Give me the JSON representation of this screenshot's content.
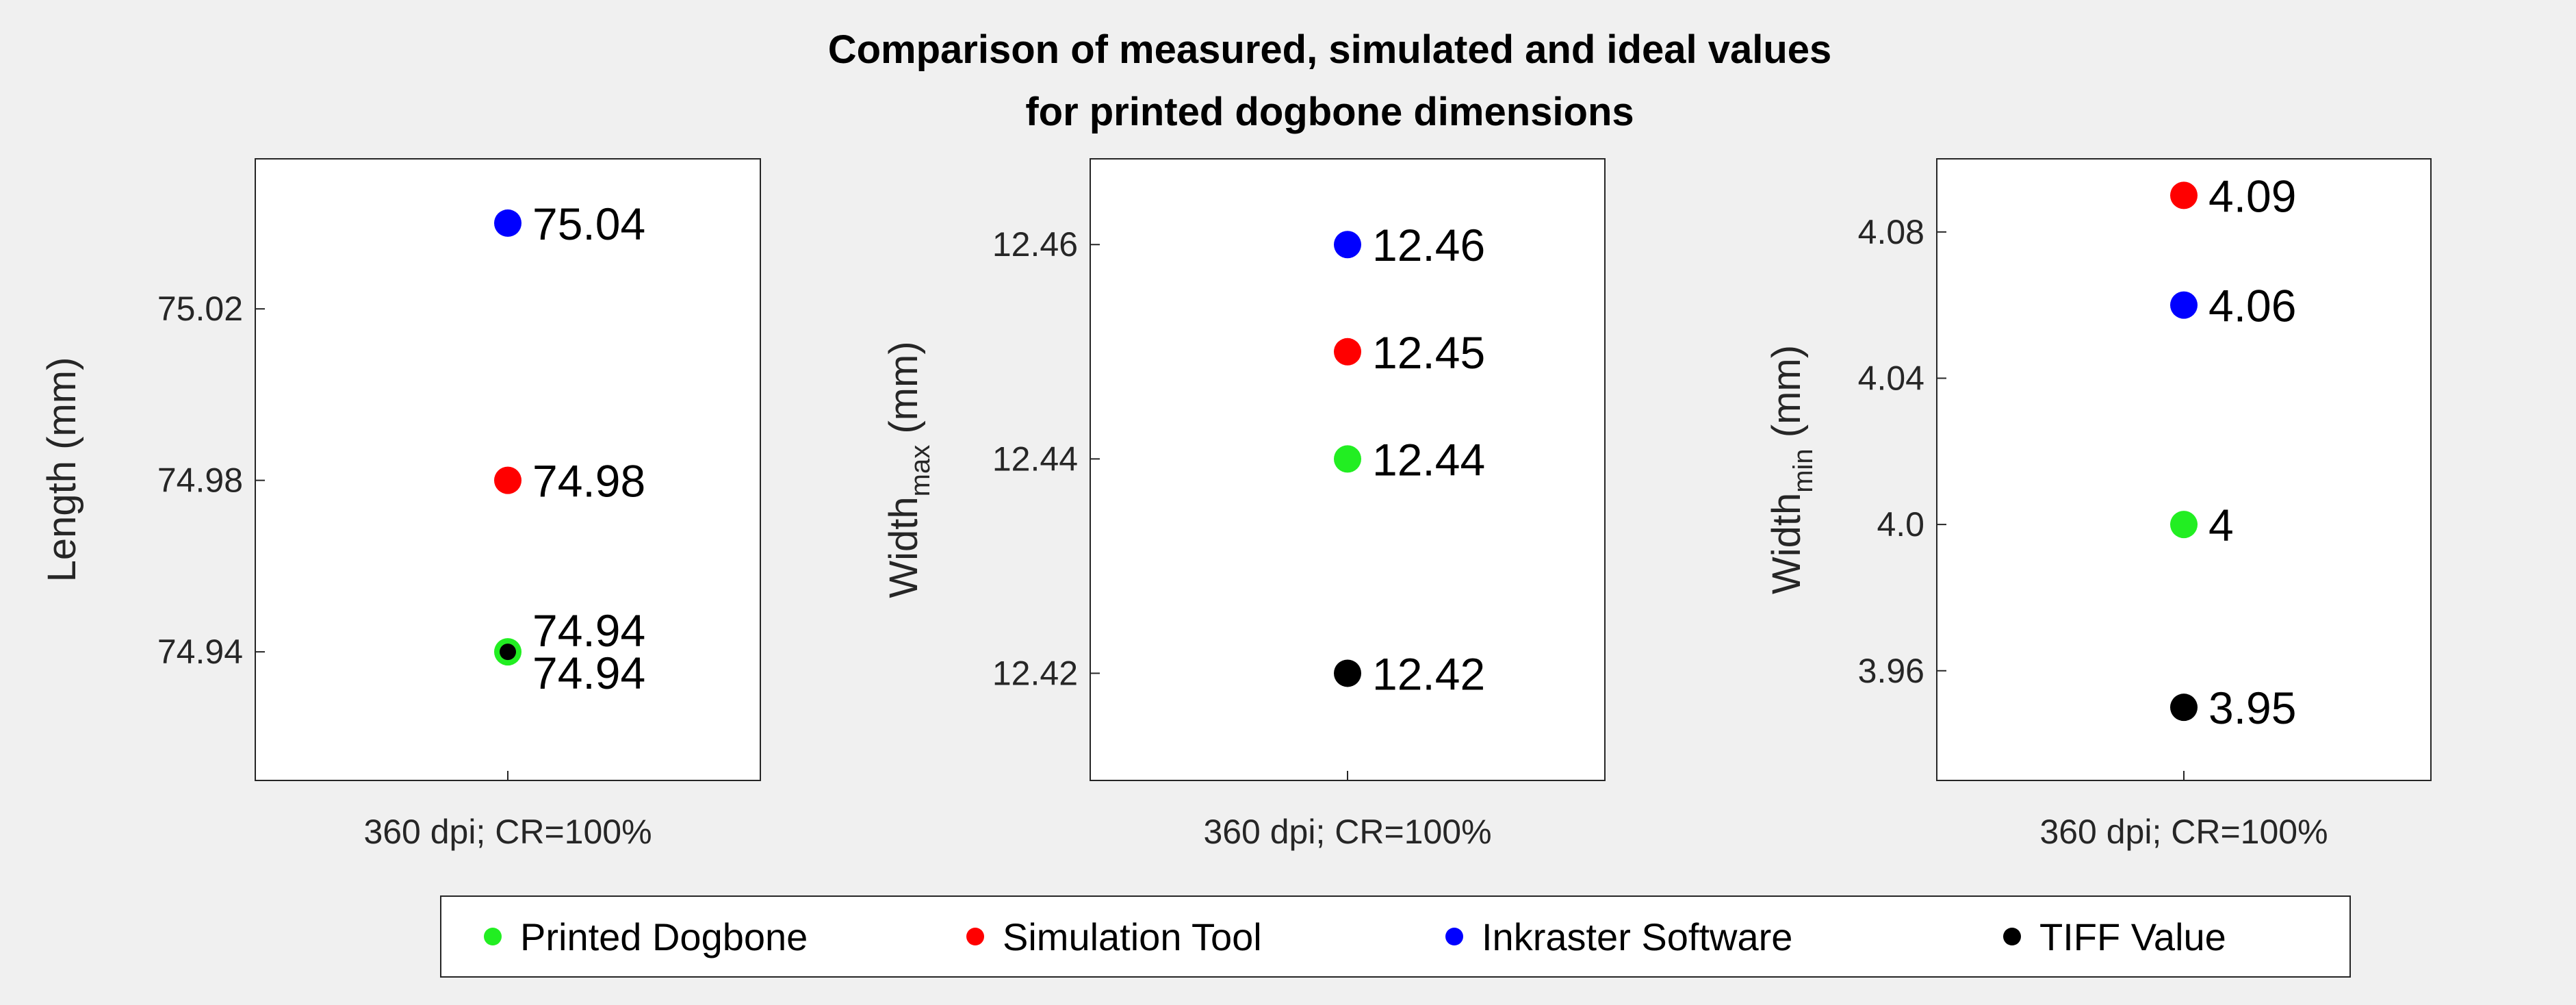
{
  "title_line1": "Comparison of measured, simulated and ideal values",
  "title_line2": "for printed dogbone dimensions",
  "colors": {
    "printed": "#22ee22",
    "simulation": "#ff0000",
    "inkraster": "#0000ff",
    "tiff": "#000000"
  },
  "legend": [
    {
      "key": "printed",
      "label": "Printed Dogbone"
    },
    {
      "key": "simulation",
      "label": "Simulation Tool"
    },
    {
      "key": "inkraster",
      "label": "Inkraster Software"
    },
    {
      "key": "tiff",
      "label": "TIFF Value"
    }
  ],
  "chart_data": [
    {
      "type": "scatter",
      "ylabel": "Length (mm)",
      "xlabel": "360 dpi; CR=100%",
      "ylim": [
        74.91,
        75.055
      ],
      "yticks": [
        "74.94",
        "74.98",
        "75.02"
      ],
      "points": [
        {
          "series": "inkraster",
          "value": 75.04,
          "label": "75.04"
        },
        {
          "series": "simulation",
          "value": 74.98,
          "label": "74.98"
        },
        {
          "series": "printed",
          "value": 74.94,
          "label": "74.94"
        },
        {
          "series": "tiff",
          "value": 74.94,
          "label": "74.94"
        }
      ]
    },
    {
      "type": "scatter",
      "ylabel": "Width",
      "ylabel_sub": "max",
      "ylabel_unit": " (mm)",
      "xlabel": "360 dpi; CR=100%",
      "ylim": [
        12.41,
        12.468
      ],
      "yticks": [
        "12.42",
        "12.44",
        "12.46"
      ],
      "points": [
        {
          "series": "inkraster",
          "value": 12.46,
          "label": "12.46"
        },
        {
          "series": "simulation",
          "value": 12.45,
          "label": "12.45"
        },
        {
          "series": "printed",
          "value": 12.44,
          "label": "12.44"
        },
        {
          "series": "tiff",
          "value": 12.42,
          "label": "12.42"
        }
      ]
    },
    {
      "type": "scatter",
      "ylabel": "Width",
      "ylabel_sub": "min",
      "ylabel_unit": " (mm)",
      "xlabel": "360 dpi; CR=100%",
      "ylim": [
        3.93,
        4.1
      ],
      "yticks": [
        "3.96",
        "4.0",
        "4.04",
        "4.08"
      ],
      "points": [
        {
          "series": "simulation",
          "value": 4.09,
          "label": "4.09"
        },
        {
          "series": "inkraster",
          "value": 4.06,
          "label": "4.06"
        },
        {
          "series": "printed",
          "value": 4.0,
          "label": "4"
        },
        {
          "series": "tiff",
          "value": 3.95,
          "label": "3.95"
        }
      ]
    }
  ]
}
